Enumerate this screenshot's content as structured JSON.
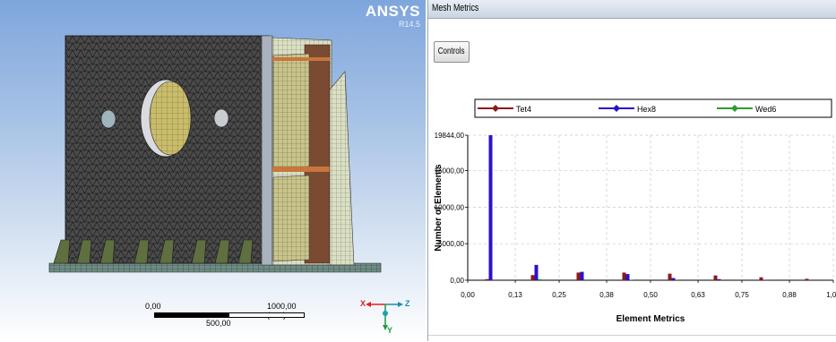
{
  "brand": {
    "name": "ANSYS",
    "version": "R14.5"
  },
  "scale_bar": {
    "left_label": "0,00",
    "right_label": "1000,00 (mm)",
    "mid_label": "500,00"
  },
  "triad": {
    "x_label": "X",
    "y_label": "Y",
    "z_label": "Z"
  },
  "panel": {
    "title": "Mesh Metrics",
    "controls_label": "Controls"
  },
  "colors": {
    "tet4": "#8b1a1a",
    "hex8": "#2a12c8",
    "wed6": "#2e9b2e"
  },
  "chart_data": {
    "type": "bar",
    "legend_position": "top",
    "ylabel": "Number of Elements",
    "xlabel": "Element Metrics",
    "ylim": [
      0,
      19844
    ],
    "xlim": [
      0,
      1
    ],
    "y_ticks": [
      "0,00",
      "5000,00",
      "10000,00",
      "15000,00",
      "19844,00"
    ],
    "x_ticks": [
      "0,00",
      "0,13",
      "0,25",
      "0,38",
      "0,50",
      "0,63",
      "0,75",
      "0,88",
      "1,00"
    ],
    "grid": true,
    "x": [
      0.0625,
      0.1875,
      0.3125,
      0.4375,
      0.5625,
      0.6875,
      0.8125,
      0.9375
    ],
    "series": [
      {
        "name": "Tet4",
        "values": [
          150,
          700,
          1050,
          1050,
          900,
          650,
          400,
          200
        ]
      },
      {
        "name": "Hex8",
        "values": [
          19844,
          2100,
          1150,
          850,
          300,
          150,
          50,
          20
        ]
      },
      {
        "name": "Wed6",
        "values": [
          0,
          150,
          100,
          40,
          20,
          10,
          5,
          0
        ]
      }
    ]
  }
}
